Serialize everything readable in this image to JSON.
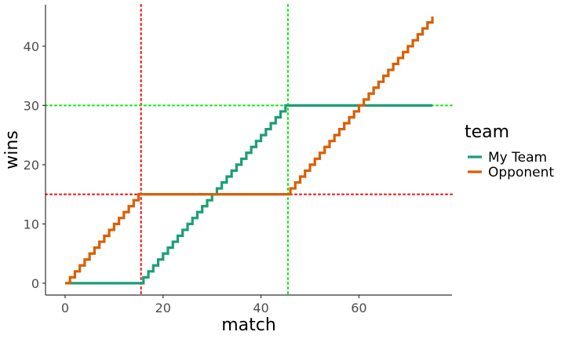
{
  "chart_data": {
    "type": "line",
    "step": true,
    "xlabel": "match",
    "ylabel": "wins",
    "xlim": [
      -4,
      79
    ],
    "ylim": [
      -2,
      47
    ],
    "x_ticks": [
      0,
      20,
      40,
      60
    ],
    "y_ticks": [
      0,
      10,
      20,
      30,
      40
    ],
    "grid": false,
    "legend": {
      "title": "team",
      "position": "right"
    },
    "series": [
      {
        "name": "My Team",
        "color": "#1b9e77",
        "x": [
          0,
          15,
          45,
          75
        ],
        "y": [
          0,
          0,
          30,
          30
        ]
      },
      {
        "name": "Opponent",
        "color": "#d95f02",
        "x": [
          0,
          15,
          45,
          75
        ],
        "y": [
          0,
          15,
          15,
          45
        ]
      }
    ],
    "reference_lines": [
      {
        "orientation": "vertical",
        "value": 15.5,
        "color": "#ff0000",
        "style": "dotted"
      },
      {
        "orientation": "vertical",
        "value": 45.5,
        "color": "#00ee00",
        "style": "dotted"
      },
      {
        "orientation": "horizontal",
        "value": 15,
        "color": "#ff0000",
        "style": "dotted"
      },
      {
        "orientation": "horizontal",
        "value": 30,
        "color": "#00ee00",
        "style": "dotted"
      }
    ]
  }
}
